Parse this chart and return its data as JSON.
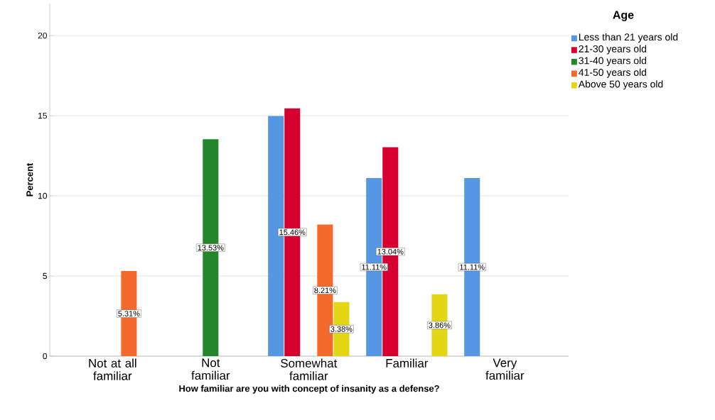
{
  "chart_data": {
    "type": "bar",
    "xlabel": "How familiar are you with concept of insanity as a defense?",
    "ylabel": "Percent",
    "legend_title": "Age",
    "categories": [
      "Not at all familiar",
      "Not familiar",
      "Somewhat familiar",
      "Familiar",
      "Very familiar"
    ],
    "series": [
      {
        "name": "Less than 21 years old",
        "color": "#5597e2",
        "values": [
          null,
          null,
          14.98,
          11.11,
          11.11
        ],
        "value_labels": [
          null,
          null,
          null,
          "11.11%",
          "11.11%"
        ]
      },
      {
        "name": "21-30 years old",
        "color": "#d5002f",
        "values": [
          null,
          null,
          15.46,
          13.04,
          null
        ],
        "value_labels": [
          null,
          null,
          "15.46%",
          "13.04%",
          null
        ]
      },
      {
        "name": "31-40 years old",
        "color": "#24862b",
        "values": [
          null,
          13.53,
          null,
          null,
          null
        ],
        "value_labels": [
          null,
          "13.53%",
          null,
          null,
          null
        ]
      },
      {
        "name": "41-50 years old",
        "color": "#f26b2c",
        "values": [
          5.31,
          null,
          8.21,
          null,
          null
        ],
        "value_labels": [
          "5.31%",
          null,
          "8.21%",
          null,
          null
        ]
      },
      {
        "name": "Above 50 years old",
        "color": "#e2d615",
        "values": [
          null,
          null,
          3.38,
          3.86,
          null
        ],
        "value_labels": [
          null,
          null,
          "3.38%",
          "3.86%",
          null
        ]
      }
    ],
    "ylim": [
      0,
      22
    ],
    "yticks": [
      0,
      5,
      10,
      15,
      20
    ],
    "grid": "y",
    "legend": "top right"
  }
}
